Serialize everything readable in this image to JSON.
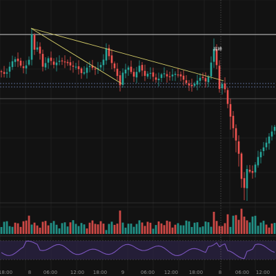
{
  "chart_data": {
    "type": "candlestick",
    "colors": {
      "background": "#121212",
      "up": "#26a69a",
      "down": "#ef5350",
      "trendline": "#d8d06a",
      "horizontal_line": "#d0d0d0",
      "dashed_line": "#6d84b8",
      "rsi_line": "#7e57c2",
      "rsi_band": "#2b2344",
      "gridline": "#262626"
    },
    "x_ticks": [
      "18:00",
      "8",
      "06:00",
      "12:00",
      "18:00",
      "9",
      "06:00",
      "12:00",
      "18:00",
      "8",
      "06:00",
      "12:00"
    ],
    "annotation": "高峰",
    "price_scale_note": "no price axis labels visible",
    "panes": [
      {
        "name": "price"
      },
      {
        "name": "volume"
      },
      {
        "name": "rsi"
      }
    ]
  }
}
